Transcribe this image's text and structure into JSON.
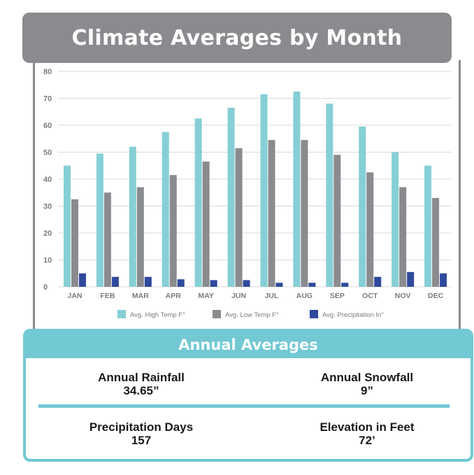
{
  "title": "Climate Averages by Month",
  "colors": {
    "high": "#86cfd6",
    "low": "#8a8b8e",
    "precip": "#2e4a9c",
    "accent": "#72c9d3",
    "header": "#8a8b8e"
  },
  "chart_data": {
    "type": "bar",
    "categories": [
      "JAN",
      "FEB",
      "MAR",
      "APR",
      "MAY",
      "JUN",
      "JUL",
      "AUG",
      "SEP",
      "OCT",
      "NOV",
      "DEC"
    ],
    "series": [
      {
        "name": "Avg. High Temp F°",
        "values": [
          45,
          49.5,
          52,
          57.5,
          62.5,
          66.5,
          71.5,
          72.5,
          68,
          59.5,
          50,
          45
        ]
      },
      {
        "name": "Avg. Low Temp F°",
        "values": [
          32.5,
          35,
          37,
          41.5,
          46.5,
          51.5,
          54.5,
          54.5,
          49,
          42.5,
          37,
          33
        ]
      },
      {
        "name": "Avg. Precipitation In\"",
        "values": [
          5,
          3.7,
          3.7,
          2.8,
          2.5,
          2.5,
          1.5,
          1.5,
          1.5,
          3.7,
          5.5,
          5
        ]
      }
    ],
    "yticks": [
      "80",
      "70",
      "60",
      "50",
      "40",
      "30",
      "20",
      "10",
      "0"
    ],
    "ylim": [
      0,
      80
    ],
    "grid": true,
    "legend_position": "bottom"
  },
  "annual": {
    "title": "Annual Averages",
    "rainfall_label": "Annual Rainfall",
    "rainfall_value": "34.65”",
    "snowfall_label": "Annual Snowfall",
    "snowfall_value": "9”",
    "precip_days_label": "Precipitation Days",
    "precip_days_value": "157",
    "elevation_label": "Elevation in Feet",
    "elevation_value": "72’"
  }
}
